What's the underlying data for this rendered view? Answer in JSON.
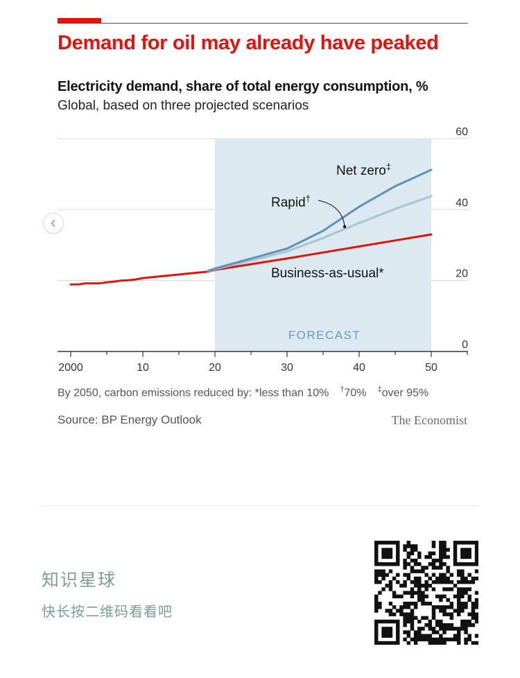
{
  "headline": "Demand for oil may already have peaked",
  "subtitle": "Electricity demand, share of total energy consumption, %",
  "subtitle2": "Global, based on three projected scenarios",
  "chart_data": {
    "type": "line",
    "title": "Electricity demand, share of total energy consumption, %",
    "xlabel": "",
    "ylabel": "%",
    "xlim": [
      1999,
      2055
    ],
    "ylim": [
      0,
      60
    ],
    "x_ticks": [
      2000,
      2010,
      2020,
      2030,
      2040,
      2050
    ],
    "x_tick_labels": [
      "2000",
      "10",
      "20",
      "30",
      "40",
      "50"
    ],
    "y_ticks": [
      0,
      20,
      40,
      60
    ],
    "y_tick_labels": [
      "0",
      "20",
      "40",
      "60"
    ],
    "gridlines": true,
    "forecast_region": {
      "from": 2020,
      "to": 2050,
      "label": "FORECAST"
    },
    "series": [
      {
        "name": "Business-as-usual*",
        "color": "#e3120b",
        "x": [
          2000,
          2001,
          2002,
          2003,
          2004,
          2005,
          2006,
          2007,
          2008,
          2009,
          2010,
          2011,
          2012,
          2013,
          2014,
          2015,
          2016,
          2017,
          2018,
          2019,
          2020,
          2025,
          2030,
          2035,
          2040,
          2045,
          2050
        ],
        "values": [
          18.9,
          18.9,
          19.2,
          19.2,
          19.2,
          19.5,
          19.7,
          20.0,
          20.1,
          20.3,
          20.7,
          20.9,
          21.1,
          21.3,
          21.5,
          21.7,
          21.9,
          22.1,
          22.3,
          22.5,
          23.0,
          24.6,
          26.2,
          27.9,
          29.6,
          31.3,
          33.0
        ]
      },
      {
        "name": "Rapid†",
        "color": "#a9c2d4",
        "x": [
          2019,
          2020,
          2025,
          2030,
          2035,
          2040,
          2045,
          2050
        ],
        "values": [
          22.6,
          23.2,
          25.6,
          28.2,
          32.0,
          36.2,
          40.2,
          43.8
        ]
      },
      {
        "name": "Net zero‡",
        "color": "#5f91b5",
        "x": [
          2019,
          2020,
          2025,
          2030,
          2035,
          2040,
          2045,
          2050
        ],
        "values": [
          22.7,
          23.4,
          26.2,
          29.0,
          34.0,
          40.8,
          46.6,
          51.2
        ]
      }
    ],
    "labels": {
      "net_zero": "Net zero",
      "net_zero_mark": "‡",
      "rapid": "Rapid",
      "rapid_mark": "†",
      "bau": "Business-as-usual*",
      "forecast": "FORECAST"
    }
  },
  "footnote": {
    "prefix": "By 2050, carbon emissions reduced by: *less than 10%",
    "dagger": "†",
    "dagger_value": "70%",
    "ddagger": "‡",
    "ddagger_value": "over 95%"
  },
  "source": "Source: BP Energy Outlook",
  "brand": "The Economist",
  "promo": {
    "title": "知识星球",
    "subtitle": "快长按二维码看看吧"
  }
}
